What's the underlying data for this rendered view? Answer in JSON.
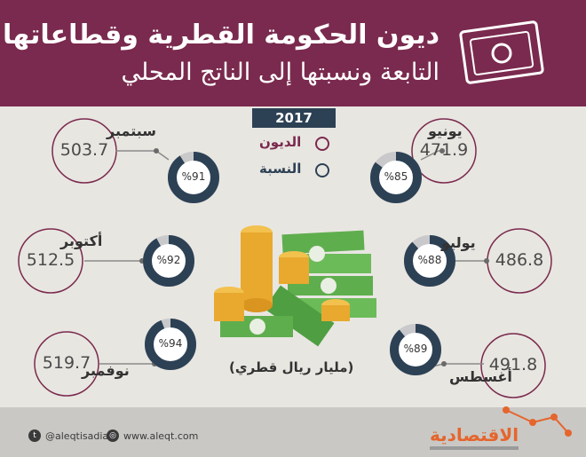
{
  "header": {
    "title_line1": "ديون الحكومة القطرية وقطاعاتها",
    "title_line2": "التابعة ونسبتها إلى الناتج المحلي"
  },
  "legend": {
    "year": "2017",
    "debt_label": "الديون",
    "ratio_label": "النسبة"
  },
  "unit_label": "(مليار ريال قطري)",
  "colors": {
    "header": "#7a2a4e",
    "debt": "#7a2a4e",
    "ratio": "#2d4155",
    "ring_track": "#c9c9cc",
    "brand": "#e5652d"
  },
  "chart_data": {
    "type": "donut",
    "series": [
      {
        "name": "الديون",
        "unit": "مليار ريال قطري"
      },
      {
        "name": "النسبة",
        "unit": "%"
      }
    ],
    "points": [
      {
        "month": "يونيو",
        "debt": 471.9,
        "debt_label": "471.9",
        "ratio": 85,
        "ratio_label": "%85"
      },
      {
        "month": "يوليو",
        "debt": 486.8,
        "debt_label": "486.8",
        "ratio": 88,
        "ratio_label": "%88"
      },
      {
        "month": "أغسطس",
        "debt": 491.8,
        "debt_label": "491.8",
        "ratio": 89,
        "ratio_label": "%89"
      },
      {
        "month": "سبتمبر",
        "debt": 503.7,
        "debt_label": "503.7",
        "ratio": 91,
        "ratio_label": "%91"
      },
      {
        "month": "أكتوبر",
        "debt": 512.5,
        "debt_label": "512.5",
        "ratio": 92,
        "ratio_label": "%92"
      },
      {
        "month": "نوفمبر",
        "debt": 519.7,
        "debt_label": "519.7",
        "ratio": 94,
        "ratio_label": "%94"
      }
    ]
  },
  "footer": {
    "twitter": "@aleqtisadiah",
    "website": "www.aleqt.com",
    "brand": "الاقتصادية"
  }
}
